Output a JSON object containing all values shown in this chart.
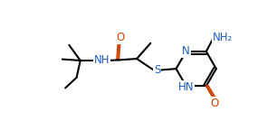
{
  "bg_color": "#ffffff",
  "line_color": "#000000",
  "heteroatom_color": "#1a5fc8",
  "o_color": "#cc4400",
  "bond_lw": 1.5,
  "font_size": 8.5,
  "fig_width": 3.06,
  "fig_height": 1.55,
  "dpi": 100,
  "xlim": [
    0,
    11.0
  ],
  "ylim": [
    -0.5,
    4.0
  ]
}
